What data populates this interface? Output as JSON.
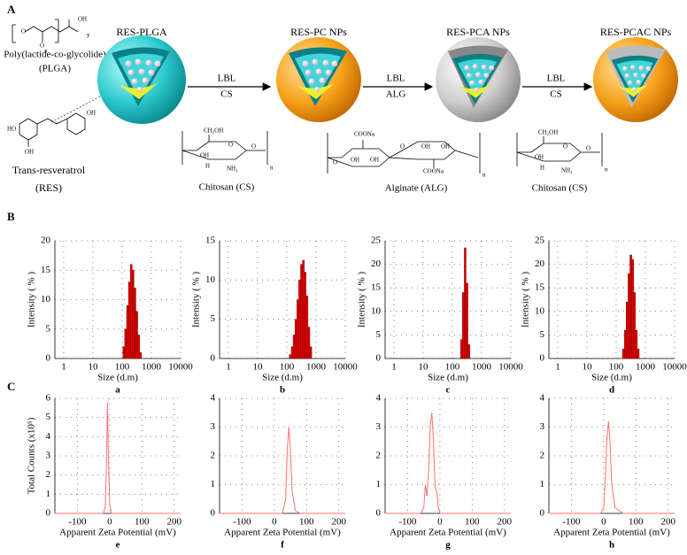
{
  "panel_a": {
    "label": "A",
    "particles": [
      "RES-PLGA",
      "RES-PC NPs",
      "RES-PCA NPs",
      "RES-PCAC NPs"
    ],
    "steps": [
      {
        "method": "LBL",
        "material": "CS"
      },
      {
        "method": "LBL",
        "material": "ALG"
      },
      {
        "method": "LBL",
        "material": "CS"
      }
    ],
    "plga": {
      "name": "Poly(lactide-co-glycolide)",
      "abbr": "(PLGA)",
      "atoms": [
        "O",
        "O",
        "OH",
        "x",
        "y"
      ]
    },
    "res": {
      "name": "Trans-resveratrol",
      "abbr": "(RES)",
      "atoms": [
        "HO",
        "OH",
        "OH"
      ]
    },
    "structures": [
      {
        "name": "Chitosan (CS)",
        "atoms": [
          "CH₂OH",
          "O",
          "O",
          "OH",
          "H",
          "NH₂",
          "n"
        ]
      },
      {
        "name": "Alginate (ALG)",
        "atoms": [
          "COONa",
          "O",
          "OH",
          "OH",
          "O",
          "OH",
          "OH",
          "COONa",
          "n"
        ]
      },
      {
        "name": "Chitosan (CS)",
        "atoms": [
          "CH₂OH",
          "O",
          "O",
          "OH",
          "H",
          "NH₂",
          "n"
        ]
      }
    ]
  },
  "panel_b": "B",
  "panel_c": "C",
  "chart_data": [
    {
      "type": "histogram",
      "label": "a",
      "x_label": "Size (d.m)",
      "y_label": "Intensity ( % )",
      "color": "#e00000",
      "log_x": true,
      "grid": true,
      "bins": [
        106,
        122,
        142,
        164,
        190,
        220,
        255,
        295,
        342,
        396,
        459
      ],
      "values": [
        2,
        5,
        9,
        13,
        16,
        15,
        12,
        8,
        4,
        1
      ],
      "xlim": [
        0.5,
        10000
      ],
      "xticks": [
        1,
        10,
        100,
        1000,
        10000
      ],
      "ylim": [
        0,
        20
      ],
      "yticks": [
        0,
        5,
        10,
        15,
        20
      ]
    },
    {
      "type": "histogram",
      "label": "b",
      "x_label": "Size (d.m)",
      "y_label": "Intensity ( % )",
      "color": "#e00000",
      "log_x": true,
      "grid": true,
      "bins": [
        122,
        142,
        164,
        190,
        220,
        255,
        295,
        342,
        396,
        459,
        531,
        615,
        712
      ],
      "values": [
        0.5,
        1.5,
        3,
        5,
        7.5,
        10,
        12,
        12.5,
        11,
        8,
        4,
        1.5
      ],
      "xlim": [
        0.5,
        10000
      ],
      "xticks": [
        1,
        10,
        100,
        1000,
        10000
      ],
      "ylim": [
        0,
        15
      ],
      "yticks": [
        0,
        5,
        10,
        15
      ]
    },
    {
      "type": "histogram",
      "label": "c",
      "x_label": "Size (d.m)",
      "y_label": "Intensity ( % )",
      "color": "#e00000",
      "log_x": true,
      "grid": true,
      "bins": [
        190,
        220,
        255,
        295,
        342,
        396
      ],
      "values": [
        4,
        14,
        23.5,
        16,
        3
      ],
      "xlim": [
        0.5,
        10000
      ],
      "xticks": [
        1,
        10,
        100,
        1000,
        10000
      ],
      "ylim": [
        0,
        25
      ],
      "yticks": [
        0,
        5,
        10,
        15,
        20,
        25
      ]
    },
    {
      "type": "histogram",
      "label": "d",
      "x_label": "Size (d.m)",
      "y_label": "Intensity ( % )",
      "color": "#e00000",
      "log_x": true,
      "grid": true,
      "bins": [
        164,
        190,
        220,
        255,
        295,
        342,
        396,
        459,
        531,
        615
      ],
      "values": [
        2,
        6,
        12,
        18,
        22,
        21,
        14,
        6,
        2
      ],
      "xlim": [
        0.5,
        10000
      ],
      "xticks": [
        1,
        10,
        100,
        1000,
        10000
      ],
      "ylim": [
        0,
        25
      ],
      "yticks": [
        0,
        5,
        10,
        15,
        20,
        25
      ]
    },
    {
      "type": "line",
      "label": "e",
      "x_label": "Apparent Zeta Potential (mV)",
      "y_label": "Total Counts (x10⁵)",
      "color": "#ff7070",
      "grid": true,
      "x": [
        -170,
        -40,
        -20,
        -14,
        -10,
        -7,
        -4,
        0,
        5,
        20,
        60,
        220
      ],
      "values": [
        0,
        0,
        0,
        0.3,
        2.5,
        5.8,
        3,
        0.5,
        0,
        0,
        0,
        0
      ],
      "xlim": [
        -170,
        220
      ],
      "xticks": [
        -100,
        0,
        100,
        200
      ],
      "ylim": [
        0,
        6
      ],
      "yticks": [
        0,
        1,
        2,
        3,
        4,
        5,
        6
      ]
    },
    {
      "type": "line",
      "label": "f",
      "x_label": "Apparent Zeta Potential (mV)",
      "color": "#ff7070",
      "grid": true,
      "x": [
        -170,
        0,
        25,
        35,
        40,
        45,
        50,
        55,
        65,
        80,
        220
      ],
      "values": [
        0,
        0,
        0,
        0.5,
        2.2,
        3.0,
        2.2,
        0.8,
        0.1,
        0,
        0
      ],
      "xlim": [
        -170,
        220
      ],
      "xticks": [
        -100,
        0,
        100,
        200
      ],
      "ylim": [
        0,
        4
      ],
      "yticks": [
        0,
        1,
        2,
        3,
        4
      ]
    },
    {
      "type": "line",
      "label": "g",
      "x_label": "Apparent Zeta Potential (mV)",
      "color": "#ff7070",
      "grid": true,
      "x": [
        -170,
        -60,
        -50,
        -45,
        -40,
        -35,
        -30,
        -25,
        -20,
        -15,
        -10,
        -5,
        0,
        20,
        220
      ],
      "values": [
        0,
        0,
        0.2,
        1.0,
        0.6,
        1.5,
        3.0,
        3.5,
        2.5,
        0.9,
        0.8,
        0.2,
        0,
        0,
        0
      ],
      "xlim": [
        -170,
        220
      ],
      "xticks": [
        -100,
        0,
        100,
        200
      ],
      "ylim": [
        0,
        4
      ],
      "yticks": [
        0,
        1,
        2,
        3,
        4
      ]
    },
    {
      "type": "line",
      "label": "h",
      "x_label": "Apparent Zeta Potential (mV)",
      "color": "#ff7070",
      "grid": true,
      "x": [
        -170,
        -10,
        0,
        5,
        10,
        15,
        20,
        25,
        35,
        60,
        220
      ],
      "values": [
        0,
        0,
        0.2,
        1.2,
        2.6,
        3.2,
        2.4,
        1.0,
        0.2,
        0,
        0
      ],
      "xlim": [
        -170,
        220
      ],
      "xticks": [
        -100,
        0,
        100,
        200
      ],
      "ylim": [
        0,
        4
      ],
      "yticks": [
        0,
        1,
        2,
        3,
        4
      ]
    }
  ]
}
